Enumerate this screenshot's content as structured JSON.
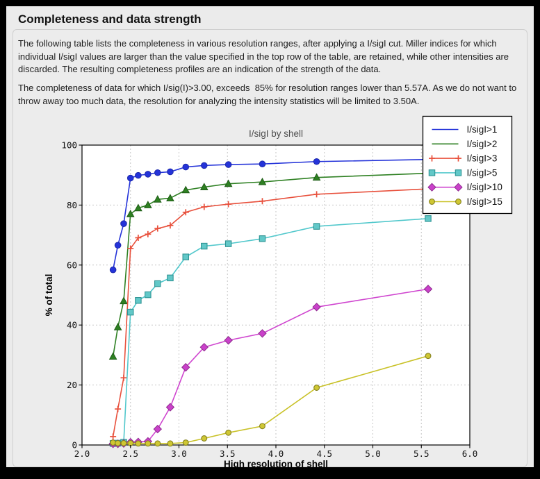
{
  "window": {
    "title": "Completeness and data strength",
    "paragraphs": [
      "The following table lists the completeness in various resolution ranges, after applying a I/sigI cut. Miller indices for which individual I/sigI values are larger than the value specified in the top row of the table, are retained, while other intensities are discarded. The resulting completeness profiles are an indication of the strength of the data.",
      "The completeness of data for which I/sig(I)>3.00, exceeds  85% for resolution ranges lower than 5.57A. As we do not want to throw away too much data, the resolution for analyzing the intensity statistics will be limited to 3.50A."
    ]
  },
  "chart_data": {
    "type": "line",
    "title": "I/sigI by shell",
    "xlabel": "High resolution of shell",
    "ylabel": "% of total",
    "xlim": [
      2.0,
      6.0
    ],
    "ylim": [
      0,
      100
    ],
    "x_ticks": [
      2.0,
      2.5,
      3.0,
      3.5,
      4.0,
      4.5,
      5.0,
      5.5,
      6.0
    ],
    "y_ticks": [
      0,
      20,
      40,
      60,
      80,
      100
    ],
    "grid": "dashed",
    "legend_position": "top-right",
    "title_color": "#4d4d4d",
    "x": [
      2.32,
      2.37,
      2.43,
      2.5,
      2.58,
      2.68,
      2.78,
      2.91,
      3.07,
      3.26,
      3.51,
      3.86,
      4.42,
      5.57
    ],
    "series": [
      {
        "name": "I/sigI>1",
        "color": "#2433d9",
        "marker": "circle",
        "marker_fill": "#2433d9",
        "marker_edge": "#1b27a8",
        "legend_marker": false,
        "values": [
          58.4,
          66.6,
          73.8,
          89.0,
          89.9,
          90.3,
          90.8,
          91.1,
          92.7,
          93.2,
          93.5,
          93.7,
          94.5,
          95.2
        ]
      },
      {
        "name": "I/sigI>2",
        "color": "#2e8022",
        "marker": "triangle",
        "marker_fill": "#2e8022",
        "marker_edge": "#1e5c16",
        "legend_marker": false,
        "values": [
          29.5,
          39.3,
          48.0,
          77.0,
          79.0,
          80.0,
          81.9,
          82.3,
          85.0,
          86.0,
          87.1,
          87.7,
          89.2,
          90.6
        ]
      },
      {
        "name": "I/sigI>3",
        "color": "#e8503c",
        "marker": "plus",
        "marker_fill": "#e8503c",
        "marker_edge": "#e8503c",
        "legend_marker": true,
        "values": [
          2.8,
          12.0,
          22.4,
          65.5,
          69.1,
          70.3,
          72.2,
          73.2,
          77.6,
          79.4,
          80.3,
          81.3,
          83.6,
          85.4
        ]
      },
      {
        "name": "I/sigI>5",
        "color": "#52c8cc",
        "marker": "square",
        "marker_fill": "#62c8c8",
        "marker_edge": "#2f9494",
        "legend_marker": true,
        "values": [
          0.5,
          0.6,
          0.9,
          44.3,
          48.2,
          50.1,
          53.8,
          55.7,
          62.7,
          66.3,
          67.1,
          68.8,
          72.9,
          75.5
        ]
      },
      {
        "name": "I/sigI>10",
        "color": "#cf45cf",
        "marker": "diamond",
        "marker_fill": "#ca41ca",
        "marker_edge": "#8d2b8d",
        "legend_marker": true,
        "values": [
          0.4,
          0.4,
          0.5,
          0.9,
          1.0,
          1.2,
          5.3,
          12.6,
          25.9,
          32.6,
          34.9,
          37.2,
          46.0,
          52.0
        ]
      },
      {
        "name": "I/sigI>15",
        "color": "#c9c229",
        "marker": "circle-small",
        "marker_fill": "#cfc733",
        "marker_edge": "#85811f",
        "legend_marker": true,
        "values": [
          0.8,
          0.6,
          0.6,
          0.6,
          0.5,
          0.5,
          0.5,
          0.5,
          0.8,
          2.2,
          4.1,
          6.3,
          19.1,
          29.7
        ]
      }
    ]
  }
}
